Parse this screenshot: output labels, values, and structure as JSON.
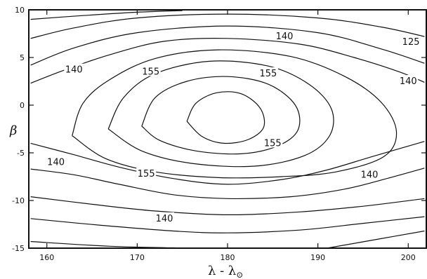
{
  "chart_data": {
    "type": "contour",
    "title": "",
    "xlabel": "λ - λ",
    "xlabel_sub": "⊙",
    "ylabel": "β",
    "xlim": [
      158,
      202
    ],
    "ylim": [
      -15,
      10
    ],
    "xticks": [
      160,
      170,
      180,
      190,
      200
    ],
    "yticks": [
      10,
      5,
      0,
      -5,
      -10,
      -15
    ],
    "grid": false,
    "contour_levels_labeled": [
      125,
      140,
      155
    ],
    "contours": [
      {
        "points": [
          [
            158.2,
            9.0
          ],
          [
            164,
            9.4
          ],
          [
            170,
            9.75
          ],
          [
            175,
            9.92
          ]
        ]
      },
      {
        "points": [
          [
            158.2,
            7.0
          ],
          [
            163,
            8.1
          ],
          [
            170,
            9.15
          ],
          [
            180,
            9.55
          ],
          [
            190,
            9.15
          ],
          [
            197,
            8.2
          ],
          [
            201.8,
            7.2
          ]
        ]
      },
      {
        "points": [
          [
            158.2,
            4.2
          ],
          [
            163,
            6.0
          ],
          [
            170,
            7.6
          ],
          [
            180,
            8.3
          ],
          [
            190,
            7.6
          ],
          [
            197,
            5.9
          ],
          [
            201.8,
            4.4
          ]
        ]
      },
      {
        "points": [
          [
            158.2,
            2.3
          ],
          [
            162,
            3.7
          ],
          [
            167,
            5.3
          ],
          [
            173,
            6.7
          ],
          [
            180,
            7.0
          ],
          [
            188,
            6.4
          ],
          [
            194,
            5.0
          ],
          [
            199,
            3.5
          ],
          [
            201.8,
            2.4
          ]
        ]
      },
      {
        "points": [
          [
            162.8,
            -3.2
          ],
          [
            164,
            0.2
          ],
          [
            167,
            2.7
          ],
          [
            172,
            4.9
          ],
          [
            179,
            5.8
          ],
          [
            187,
            5.1
          ],
          [
            193,
            3.0
          ],
          [
            197,
            0.3
          ],
          [
            198.7,
            -2.8
          ],
          [
            197.3,
            -5.4
          ],
          [
            192,
            -7.0
          ],
          [
            186,
            -7.5
          ],
          [
            179,
            -7.6
          ],
          [
            172,
            -7.0
          ],
          [
            166.5,
            -5.6
          ],
          [
            162.8,
            -3.2
          ]
        ],
        "label": "155",
        "label_x": 171.5,
        "label_y": 3.5
      },
      {
        "points": [
          [
            166.8,
            -2.5
          ],
          [
            168.5,
            0.8
          ],
          [
            172,
            3.3
          ],
          [
            178,
            4.6
          ],
          [
            184.5,
            4.1
          ],
          [
            189,
            2.2
          ],
          [
            191.5,
            -0.4
          ],
          [
            191.3,
            -3.2
          ],
          [
            188.5,
            -5.3
          ],
          [
            183,
            -6.4
          ],
          [
            176,
            -6.1
          ],
          [
            170.5,
            -4.8
          ],
          [
            166.8,
            -2.5
          ]
        ],
        "label": "155",
        "label_x": 184.5,
        "label_y": 3.3
      },
      {
        "points": [
          [
            170.5,
            -2.2
          ],
          [
            172,
            0.8
          ],
          [
            175.5,
            2.5
          ],
          [
            180,
            3.0
          ],
          [
            184.5,
            2.2
          ],
          [
            187.5,
            0.0
          ],
          [
            187.8,
            -2.6
          ],
          [
            185.5,
            -4.3
          ],
          [
            181.5,
            -5.1
          ],
          [
            176.5,
            -4.8
          ],
          [
            172.5,
            -3.7
          ],
          [
            170.5,
            -2.2
          ]
        ],
        "label": "155",
        "label_x": 185.0,
        "label_y": -4.0
      },
      {
        "points": [
          [
            175.5,
            -1.7
          ],
          [
            176.5,
            0.2
          ],
          [
            178.8,
            1.3
          ],
          [
            181.5,
            1.2
          ],
          [
            183.6,
            -0.3
          ],
          [
            184.0,
            -2.3
          ],
          [
            182.3,
            -3.6
          ],
          [
            179.6,
            -4.0
          ],
          [
            177.2,
            -3.3
          ],
          [
            175.5,
            -1.7
          ]
        ]
      },
      {
        "points": [
          [
            158.2,
            -4.0
          ],
          [
            163,
            -5.2
          ],
          [
            168,
            -6.5
          ],
          [
            174,
            -7.7
          ],
          [
            180,
            -8.3
          ],
          [
            186,
            -7.8
          ],
          [
            191,
            -6.8
          ],
          [
            196,
            -5.4
          ],
          [
            201.8,
            -3.8
          ]
        ],
        "label": "155",
        "label_x": 171.0,
        "label_y": -7.2
      },
      {
        "points": [
          [
            158.2,
            -6.7
          ],
          [
            163,
            -7.3
          ],
          [
            168,
            -8.3
          ],
          [
            174,
            -9.4
          ],
          [
            180,
            -9.8
          ],
          [
            187,
            -9.6
          ],
          [
            193,
            -8.8
          ],
          [
            198,
            -7.6
          ],
          [
            201.8,
            -6.6
          ]
        ],
        "label": "140",
        "label_x": 195.7,
        "label_y": -7.3
      },
      {
        "points": [
          [
            158.2,
            -9.6
          ],
          [
            165,
            -10.4
          ],
          [
            172,
            -11.1
          ],
          [
            180,
            -11.5
          ],
          [
            188,
            -11.2
          ],
          [
            195,
            -10.6
          ],
          [
            201.8,
            -9.8
          ]
        ]
      },
      {
        "points": [
          [
            158.2,
            -11.9
          ],
          [
            166,
            -12.6
          ],
          [
            174,
            -13.2
          ],
          [
            180,
            -13.4
          ],
          [
            188,
            -13.1
          ],
          [
            195,
            -12.4
          ],
          [
            201.8,
            -11.7
          ]
        ],
        "label": "140",
        "label_x": 173.0,
        "label_y": -11.9
      },
      {
        "points": [
          [
            158.2,
            -14.3
          ],
          [
            167,
            -14.8
          ],
          [
            176,
            -15.0
          ]
        ]
      },
      {
        "points": [
          [
            191,
            -15.0
          ],
          [
            197,
            -14.0
          ],
          [
            201.8,
            -13.2
          ]
        ]
      }
    ],
    "labels": [
      {
        "text": "140",
        "x": 186.3,
        "y": 7.2
      },
      {
        "text": "125",
        "x": 200.3,
        "y": 6.6
      },
      {
        "text": "140",
        "x": 163.0,
        "y": 3.7
      },
      {
        "text": "140",
        "x": 200.0,
        "y": 2.5
      },
      {
        "text": "140",
        "x": 161.0,
        "y": -6.0
      }
    ]
  }
}
